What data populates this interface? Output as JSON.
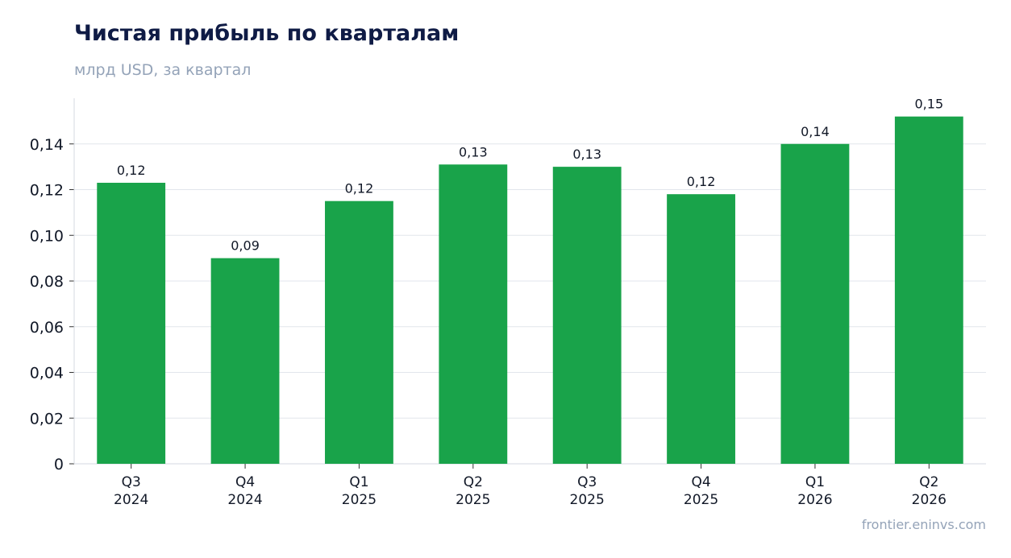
{
  "header": {
    "title": "Чистая прибыль по кварталам",
    "subtitle": "млрд USD, за квартал"
  },
  "footer": {
    "source": "frontier.eninvs.com"
  },
  "chart_data": {
    "type": "bar",
    "title": "Чистая прибыль по кварталам",
    "subtitle": "млрд USD, за квартал",
    "categories": [
      [
        "Q3",
        "2024"
      ],
      [
        "Q4",
        "2024"
      ],
      [
        "Q1",
        "2025"
      ],
      [
        "Q2",
        "2025"
      ],
      [
        "Q3",
        "2025"
      ],
      [
        "Q4",
        "2025"
      ],
      [
        "Q1",
        "2026"
      ],
      [
        "Q2",
        "2026"
      ]
    ],
    "values": [
      0.123,
      0.09,
      0.115,
      0.131,
      0.13,
      0.118,
      0.14,
      0.152
    ],
    "value_labels": [
      "0,12",
      "0,09",
      "0,12",
      "0,13",
      "0,13",
      "0,12",
      "0,14",
      "0,15"
    ],
    "ylim": [
      0,
      0.16
    ],
    "yticks": [
      0,
      0.02,
      0.04,
      0.06,
      0.08,
      0.1,
      0.12,
      0.14
    ],
    "ytick_labels": [
      "0",
      "0,02",
      "0,04",
      "0,06",
      "0,08",
      "0,10",
      "0,12",
      "0,14"
    ],
    "grid": true,
    "legend": "none",
    "colors": {
      "bar": "#19a34a",
      "grid": "#e2e6ec",
      "axis": "#d5d9e0",
      "tick_text": "#111827",
      "value_text": "#111827"
    }
  }
}
